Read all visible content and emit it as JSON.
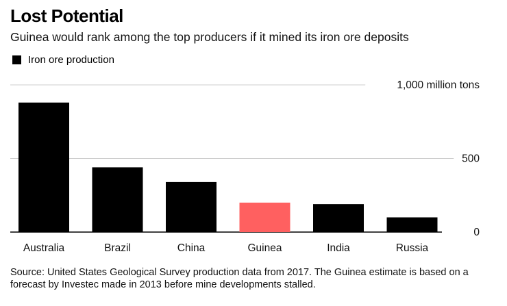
{
  "title": "Lost Potential",
  "subtitle": "Guinea would rank among the top producers if it mined its iron ore deposits",
  "legend": {
    "label": "Iron ore production"
  },
  "source": "Source: United States Geological Survey production data from 2017. The Guinea estimate is based on a forecast by Investec made in 2013 before mine developments stalled.",
  "colors": {
    "bar": "#000000",
    "highlight": "#ff6060",
    "grid": "#cccccc"
  },
  "chart_data": {
    "type": "bar",
    "categories": [
      "Australia",
      "Brazil",
      "China",
      "Guinea",
      "India",
      "Russia"
    ],
    "series": [
      {
        "name": "Iron ore production",
        "values": [
          880,
          440,
          340,
          200,
          190,
          100
        ]
      }
    ],
    "highlight_category": "Guinea",
    "yticks": [
      0,
      500,
      1000
    ],
    "ytick_labels": [
      "0",
      "500",
      "1,000 million tons"
    ],
    "ylim": [
      0,
      1000
    ],
    "grid": true,
    "legend_position": "top-left"
  }
}
